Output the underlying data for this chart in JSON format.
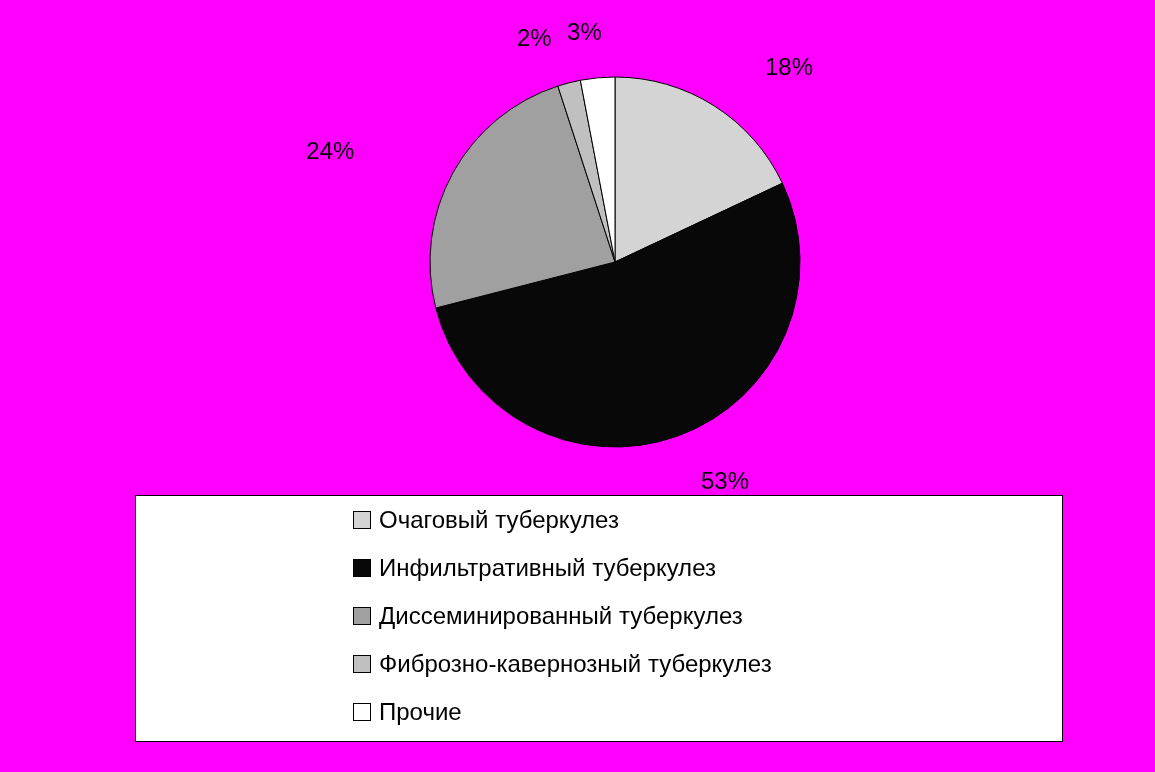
{
  "chart_data": {
    "type": "pie",
    "categories": [
      "Очаговый туберкулез",
      "Инфильтративный туберкулез",
      "Диссеминированный туберкулез",
      "Фиброзно-кавернозный туберкулез",
      "Прочие"
    ],
    "values": [
      18,
      53,
      24,
      2,
      3
    ],
    "colors": [
      "#d4d4d4",
      "#080808",
      "#a0a0a0",
      "#c0c0c0",
      "#ffffff"
    ],
    "value_labels": [
      "18%",
      "53%",
      "24%",
      "2%",
      "3%"
    ],
    "legend": "bottom"
  }
}
